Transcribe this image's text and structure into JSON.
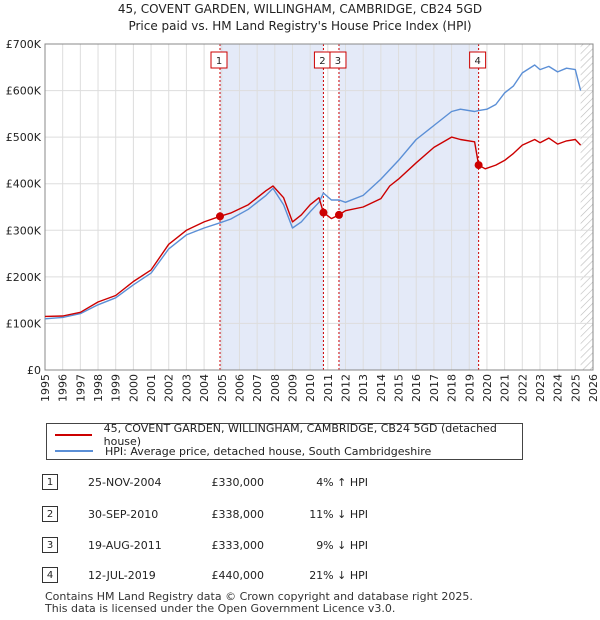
{
  "title_line1": "45, COVENT GARDEN, WILLINGHAM, CAMBRIDGE, CB24 5GD",
  "title_line2": "Price paid vs. HM Land Registry's House Price Index (HPI)",
  "colors": {
    "property": "#cc0000",
    "hpi": "#5b8fd6",
    "shade": "#e4eaf8",
    "grid": "#dddddd"
  },
  "chart_data": {
    "type": "line",
    "x_range": [
      1995,
      2026
    ],
    "y_range": [
      0,
      700000
    ],
    "y_ticks": [
      {
        "value": 0,
        "label": "£0"
      },
      {
        "value": 100000,
        "label": "£100K"
      },
      {
        "value": 200000,
        "label": "£200K"
      },
      {
        "value": 300000,
        "label": "£300K"
      },
      {
        "value": 400000,
        "label": "£400K"
      },
      {
        "value": 500000,
        "label": "£500K"
      },
      {
        "value": 600000,
        "label": "£600K"
      },
      {
        "value": 700000,
        "label": "£700K"
      }
    ],
    "x_ticks": [
      "1995",
      "1996",
      "1997",
      "1998",
      "1999",
      "2000",
      "2001",
      "2002",
      "2003",
      "2004",
      "2005",
      "2006",
      "2007",
      "2008",
      "2009",
      "2010",
      "2011",
      "2012",
      "2013",
      "2014",
      "2015",
      "2016",
      "2017",
      "2018",
      "2019",
      "2020",
      "2021",
      "2022",
      "2023",
      "2024",
      "2025",
      "2026"
    ],
    "shaded_ranges": [
      [
        2004.9,
        2010.75
      ],
      [
        2011.63,
        2019.53
      ]
    ],
    "hatch_from": 2025.3,
    "series": [
      {
        "name": "45, COVENT GARDEN, WILLINGHAM, CAMBRIDGE, CB24 5GD (detached house)",
        "points": [
          [
            1995,
            115000
          ],
          [
            1996,
            116000
          ],
          [
            1997,
            124000
          ],
          [
            1998,
            146000
          ],
          [
            1999,
            160000
          ],
          [
            2000,
            190000
          ],
          [
            2001,
            215000
          ],
          [
            2002,
            270000
          ],
          [
            2003,
            300000
          ],
          [
            2004,
            318000
          ],
          [
            2004.9,
            330000
          ],
          [
            2005.5,
            337000
          ],
          [
            2006.5,
            355000
          ],
          [
            2007.5,
            385000
          ],
          [
            2007.9,
            395000
          ],
          [
            2008.5,
            370000
          ],
          [
            2009,
            318000
          ],
          [
            2009.5,
            333000
          ],
          [
            2010,
            355000
          ],
          [
            2010.5,
            370000
          ],
          [
            2010.75,
            338000
          ],
          [
            2011.2,
            325000
          ],
          [
            2011.63,
            333000
          ],
          [
            2012,
            342000
          ],
          [
            2013,
            350000
          ],
          [
            2014,
            368000
          ],
          [
            2014.5,
            395000
          ],
          [
            2015,
            410000
          ],
          [
            2016,
            445000
          ],
          [
            2017,
            478000
          ],
          [
            2018,
            500000
          ],
          [
            2018.5,
            495000
          ],
          [
            2019.3,
            490000
          ],
          [
            2019.53,
            440000
          ],
          [
            2019.9,
            432000
          ],
          [
            2020.5,
            440000
          ],
          [
            2021,
            450000
          ],
          [
            2021.5,
            465000
          ],
          [
            2022,
            483000
          ],
          [
            2022.7,
            495000
          ],
          [
            2023,
            488000
          ],
          [
            2023.5,
            498000
          ],
          [
            2024,
            485000
          ],
          [
            2024.5,
            492000
          ],
          [
            2025,
            495000
          ],
          [
            2025.3,
            483000
          ]
        ]
      },
      {
        "name": "HPI: Average price, detached house, South Cambridgeshire",
        "points": [
          [
            1995,
            110000
          ],
          [
            1996,
            113000
          ],
          [
            1997,
            121000
          ],
          [
            1998,
            140000
          ],
          [
            1999,
            155000
          ],
          [
            2000,
            183000
          ],
          [
            2001,
            208000
          ],
          [
            2002,
            260000
          ],
          [
            2003,
            290000
          ],
          [
            2004,
            305000
          ],
          [
            2004.9,
            316000
          ],
          [
            2005.5,
            324000
          ],
          [
            2006.5,
            345000
          ],
          [
            2007.5,
            375000
          ],
          [
            2007.9,
            390000
          ],
          [
            2008.5,
            355000
          ],
          [
            2009,
            305000
          ],
          [
            2009.5,
            318000
          ],
          [
            2010,
            340000
          ],
          [
            2010.5,
            360000
          ],
          [
            2010.75,
            380000
          ],
          [
            2011.2,
            365000
          ],
          [
            2011.63,
            365000
          ],
          [
            2012,
            360000
          ],
          [
            2013,
            375000
          ],
          [
            2014,
            410000
          ],
          [
            2015,
            450000
          ],
          [
            2016,
            495000
          ],
          [
            2017,
            525000
          ],
          [
            2018,
            555000
          ],
          [
            2018.5,
            560000
          ],
          [
            2019.3,
            555000
          ],
          [
            2019.53,
            557000
          ],
          [
            2020,
            560000
          ],
          [
            2020.5,
            570000
          ],
          [
            2021,
            595000
          ],
          [
            2021.5,
            610000
          ],
          [
            2022,
            638000
          ],
          [
            2022.7,
            655000
          ],
          [
            2023,
            645000
          ],
          [
            2023.5,
            652000
          ],
          [
            2024,
            640000
          ],
          [
            2024.5,
            648000
          ],
          [
            2025,
            645000
          ],
          [
            2025.3,
            600000
          ]
        ]
      }
    ],
    "sales": [
      {
        "label": "1",
        "x": 2004.9,
        "y": 330000
      },
      {
        "label": "2",
        "x": 2010.75,
        "y": 338000
      },
      {
        "label": "3",
        "x": 2011.63,
        "y": 333000
      },
      {
        "label": "4",
        "x": 2019.53,
        "y": 440000
      }
    ]
  },
  "legend": {
    "property_label": "45, COVENT GARDEN, WILLINGHAM, CAMBRIDGE, CB24 5GD (detached house)",
    "hpi_label": "HPI: Average price, detached house, South Cambridgeshire"
  },
  "sales_table": [
    {
      "num": "1",
      "date": "25-NOV-2004",
      "price": "£330,000",
      "hpi": "4% ↑ HPI"
    },
    {
      "num": "2",
      "date": "30-SEP-2010",
      "price": "£338,000",
      "hpi": "11% ↓ HPI"
    },
    {
      "num": "3",
      "date": "19-AUG-2011",
      "price": "£333,000",
      "hpi": "9% ↓ HPI"
    },
    {
      "num": "4",
      "date": "12-JUL-2019",
      "price": "£440,000",
      "hpi": "21% ↓ HPI"
    }
  ],
  "footer_line1": "Contains HM Land Registry data © Crown copyright and database right 2025.",
  "footer_line2": "This data is licensed under the Open Government Licence v3.0."
}
